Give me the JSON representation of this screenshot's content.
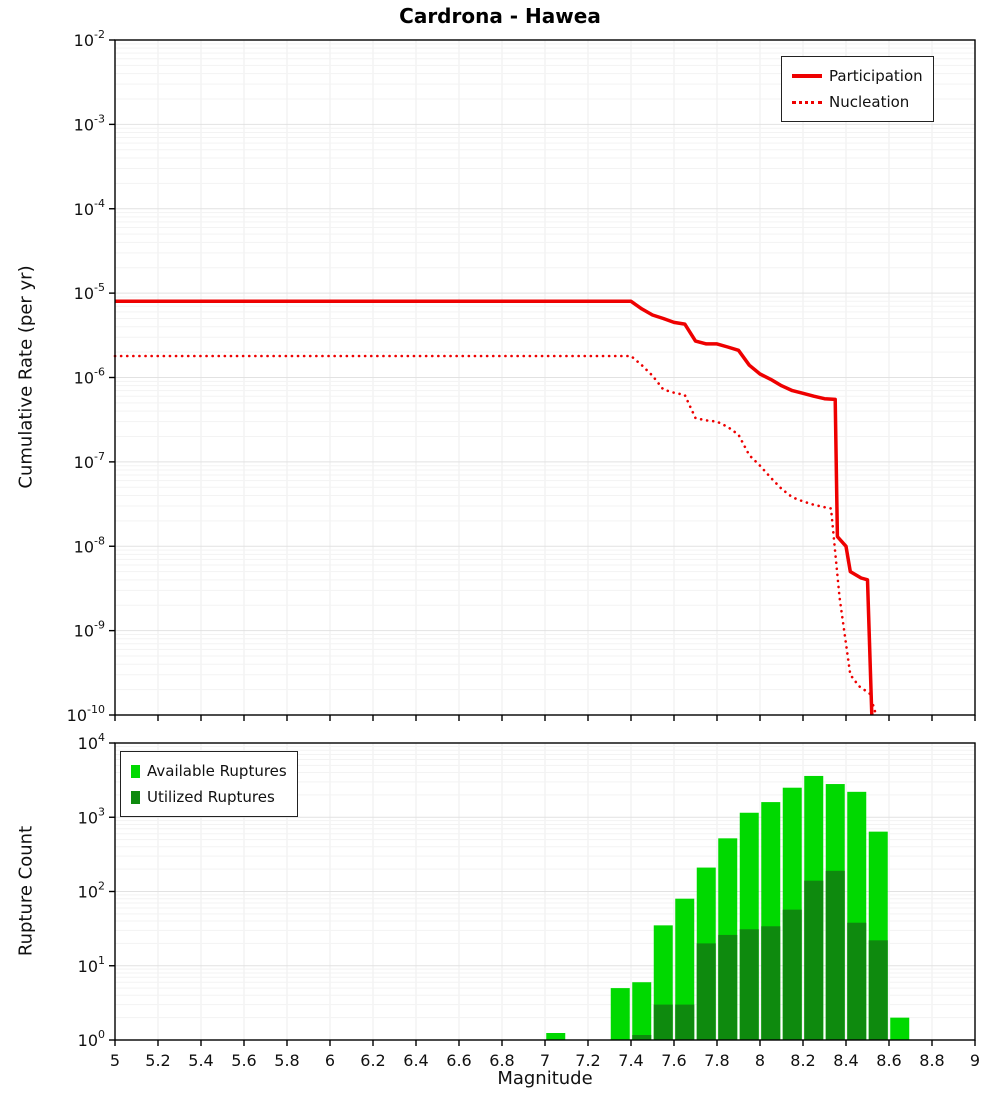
{
  "title": "Cardrona - Hawea",
  "colors": {
    "participation": "#ee0000",
    "nucleation": "#ee0000",
    "available": "#00d900",
    "utilized": "#0e8a0e",
    "grid_major": "#e2e2e2",
    "grid_minor": "#f3f3f3",
    "grid_vertical": "#ededed",
    "axis": "#000000"
  },
  "chart_data": [
    {
      "type": "line",
      "title": "Cardrona - Hawea",
      "xlabel": "Magnitude",
      "ylabel": "Cumulative Rate (per yr)",
      "xlim": [
        5,
        9
      ],
      "x_tick_step": 0.2,
      "y_exp_range": [
        -2,
        -10
      ],
      "grid": true,
      "legend_position": "top-right",
      "series": [
        {
          "name": "Participation",
          "style": "solid",
          "color": "#ee0000",
          "points": [
            [
              5.0,
              8e-06
            ],
            [
              7.4,
              8e-06
            ],
            [
              7.45,
              6.5e-06
            ],
            [
              7.5,
              5.5e-06
            ],
            [
              7.55,
              5e-06
            ],
            [
              7.6,
              4.5e-06
            ],
            [
              7.65,
              4.3e-06
            ],
            [
              7.7,
              2.7e-06
            ],
            [
              7.75,
              2.5e-06
            ],
            [
              7.8,
              2.5e-06
            ],
            [
              7.85,
              2.3e-06
            ],
            [
              7.9,
              2.1e-06
            ],
            [
              7.95,
              1.4e-06
            ],
            [
              8.0,
              1.1e-06
            ],
            [
              8.05,
              9.5e-07
            ],
            [
              8.1,
              8e-07
            ],
            [
              8.15,
              7e-07
            ],
            [
              8.2,
              6.5e-07
            ],
            [
              8.25,
              6e-07
            ],
            [
              8.3,
              5.6e-07
            ],
            [
              8.35,
              5.5e-07
            ],
            [
              8.36,
              1.3e-08
            ],
            [
              8.4,
              1e-08
            ],
            [
              8.42,
              5e-09
            ],
            [
              8.47,
              4.2e-09
            ],
            [
              8.5,
              4e-09
            ],
            [
              8.52,
              1e-10
            ]
          ]
        },
        {
          "name": "Nucleation",
          "style": "dotted",
          "color": "#ee0000",
          "points": [
            [
              5.0,
              1.8e-06
            ],
            [
              7.4,
              1.8e-06
            ],
            [
              7.45,
              1.4e-06
            ],
            [
              7.5,
              1.05e-06
            ],
            [
              7.55,
              7.2e-07
            ],
            [
              7.6,
              6.6e-07
            ],
            [
              7.65,
              6.2e-07
            ],
            [
              7.7,
              3.3e-07
            ],
            [
              7.75,
              3.1e-07
            ],
            [
              7.8,
              3e-07
            ],
            [
              7.85,
              2.6e-07
            ],
            [
              7.9,
              2.1e-07
            ],
            [
              7.95,
              1.2e-07
            ],
            [
              8.0,
              9e-08
            ],
            [
              8.05,
              6.5e-08
            ],
            [
              8.1,
              4.8e-08
            ],
            [
              8.15,
              3.8e-08
            ],
            [
              8.2,
              3.4e-08
            ],
            [
              8.25,
              3.1e-08
            ],
            [
              8.3,
              2.9e-08
            ],
            [
              8.33,
              2.8e-08
            ],
            [
              8.37,
              2.5e-09
            ],
            [
              8.42,
              3e-10
            ],
            [
              8.46,
              2.2e-10
            ],
            [
              8.51,
              1.8e-10
            ],
            [
              8.54,
              1e-10
            ]
          ]
        }
      ]
    },
    {
      "type": "bar",
      "xlabel": "Magnitude",
      "ylabel": "Rupture Count",
      "xlim": [
        5,
        9
      ],
      "x_tick_step": 0.2,
      "y_exp_range": [
        0,
        4
      ],
      "bin_width": 0.1,
      "grid": true,
      "legend_position": "top-left",
      "series": [
        {
          "name": "Available Ruptures",
          "color": "#00d900"
        },
        {
          "name": "Utilized Ruptures",
          "color": "#0e8a0e"
        }
      ],
      "bins": [
        {
          "m": 7.0,
          "available": 1,
          "utilized": 0
        },
        {
          "m": 7.3,
          "available": 5,
          "utilized": 0
        },
        {
          "m": 7.4,
          "available": 6,
          "utilized": 1
        },
        {
          "m": 7.5,
          "available": 35,
          "utilized": 3
        },
        {
          "m": 7.6,
          "available": 80,
          "utilized": 3
        },
        {
          "m": 7.7,
          "available": 210,
          "utilized": 20
        },
        {
          "m": 7.8,
          "available": 520,
          "utilized": 26
        },
        {
          "m": 7.9,
          "available": 1150,
          "utilized": 31
        },
        {
          "m": 8.0,
          "available": 1600,
          "utilized": 34
        },
        {
          "m": 8.1,
          "available": 2500,
          "utilized": 57
        },
        {
          "m": 8.2,
          "available": 3600,
          "utilized": 140
        },
        {
          "m": 8.3,
          "available": 2800,
          "utilized": 190
        },
        {
          "m": 8.4,
          "available": 2200,
          "utilized": 38
        },
        {
          "m": 8.5,
          "available": 640,
          "utilized": 22
        },
        {
          "m": 8.6,
          "available": 2,
          "utilized": 0
        }
      ]
    }
  ]
}
